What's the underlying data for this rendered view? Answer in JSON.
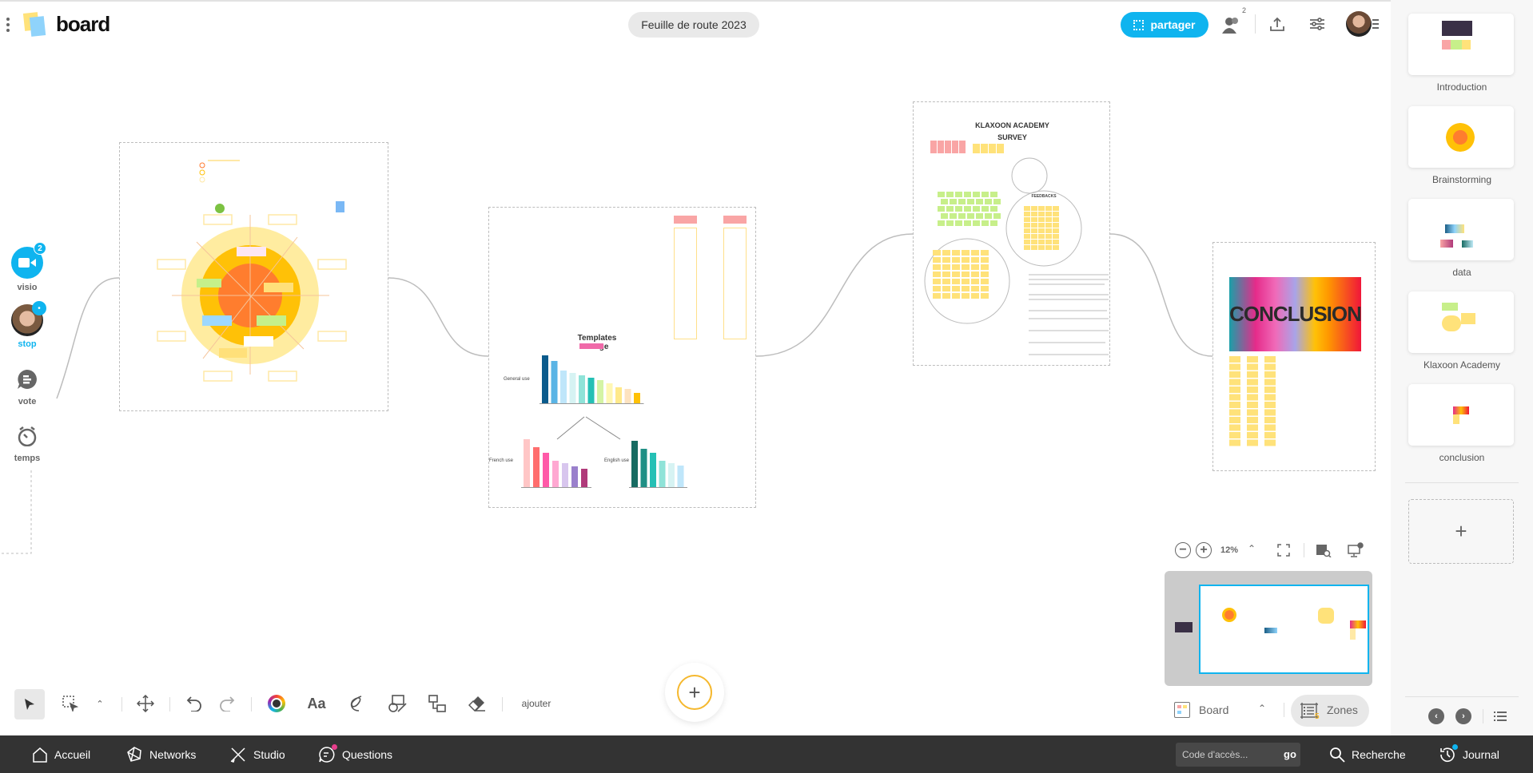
{
  "app": {
    "logo_text": "board",
    "board_title": "Feuille de route 2023"
  },
  "header": {
    "share_label": "partager",
    "participants_count": "2"
  },
  "sidebar": {
    "items": [
      {
        "label": "visio",
        "badge": "2",
        "icon": "video-icon"
      },
      {
        "label": "stop",
        "badge": "•",
        "icon": "avatar"
      },
      {
        "label": "vote",
        "icon": "vote-icon"
      },
      {
        "label": "temps",
        "icon": "timer-icon"
      }
    ]
  },
  "canvas": {
    "data_frame": {
      "title": "Templates usage",
      "general": "General use",
      "french": "French use",
      "english": "English use"
    },
    "survey_frame": {
      "title_line1": "KLAXOON ACADEMY",
      "title_line2": "SURVEY",
      "feedbacks": "FEEDBACKS"
    },
    "conclusion_frame": {
      "title": "CONCLUSION"
    }
  },
  "zones": {
    "items": [
      {
        "label": "Introduction"
      },
      {
        "label": "Brainstorming"
      },
      {
        "label": "data"
      },
      {
        "label": "Klaxoon Academy"
      },
      {
        "label": "conclusion"
      }
    ],
    "add_label": "+"
  },
  "view": {
    "zoom": "12%",
    "board_label": "Board",
    "zones_label": "Zones",
    "zones_count": "5"
  },
  "toolbar": {
    "add_label": "ajouter",
    "text_label": "Aa",
    "fab": "+"
  },
  "bottombar": {
    "home": "Accueil",
    "networks": "Networks",
    "studio": "Studio",
    "questions": "Questions",
    "code_placeholder": "Code d'accès...",
    "go": "go",
    "search": "Recherche",
    "journal": "Journal"
  },
  "colors": {
    "accent": "#0fb4ef",
    "bottom_bar": "#333333",
    "fab_ring": "#f5b82e"
  }
}
